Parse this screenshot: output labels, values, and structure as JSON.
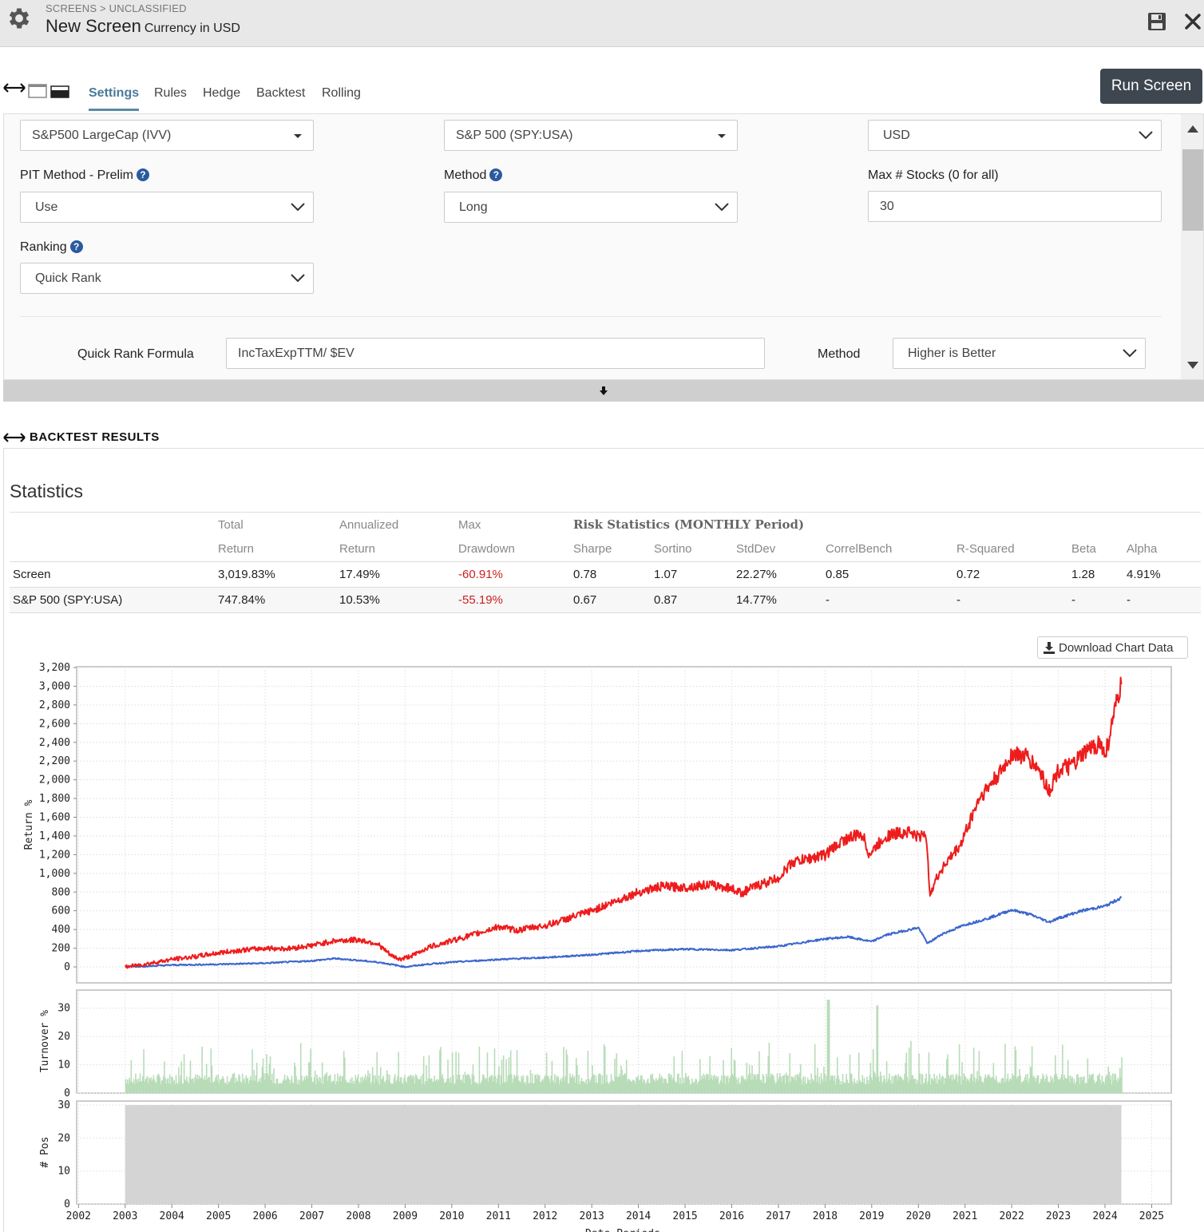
{
  "header": {
    "breadcrumb": "SCREENS > UNCLASSIFIED",
    "title": "New Screen",
    "currency": "Currency in USD"
  },
  "tabs": [
    "Settings",
    "Rules",
    "Hedge",
    "Backtest",
    "Rolling"
  ],
  "run_button": "Run Screen",
  "settings": {
    "universe": "S&P500 LargeCap (IVV)",
    "benchmark": "S&P 500 (SPY:USA)",
    "currency": "USD",
    "pit_label": "PIT Method - Prelim",
    "pit_value": "Use",
    "method_label": "Method",
    "method_value": "Long",
    "max_stocks_label": "Max # Stocks (0 for all)",
    "max_stocks_value": "30",
    "ranking_label": "Ranking",
    "ranking_value": "Quick Rank",
    "formula_label": "Quick Rank Formula",
    "formula_value": "IncTaxExpTTM/ $EV",
    "formula_method_label": "Method",
    "formula_method_value": "Higher is Better"
  },
  "backtest": {
    "title": "BACKTEST RESULTS",
    "stats_title": "Statistics",
    "header_row1": [
      "",
      "Total",
      "Annualized",
      "Max",
      "Risk Statistics (MONTHLY Period)"
    ],
    "header_row2": [
      "",
      "Return",
      "Return",
      "Drawdown",
      "Sharpe",
      "Sortino",
      "StdDev",
      "CorrelBench",
      "R-Squared",
      "Beta",
      "Alpha"
    ],
    "rows": [
      [
        "Screen",
        "3,019.83%",
        "17.49%",
        "-60.91%",
        "0.78",
        "1.07",
        "22.27%",
        "0.85",
        "0.72",
        "1.28",
        "4.91%"
      ],
      [
        "S&P 500 (SPY:USA)",
        "747.84%",
        "10.53%",
        "-55.19%",
        "0.67",
        "0.87",
        "14.77%",
        "-",
        "-",
        "-",
        "-"
      ]
    ],
    "download_label": "Download Chart Data"
  },
  "colors": {
    "screen": "#ee1c1c",
    "benchmark": "#3a66cc",
    "turnover": "#b8dcb8",
    "positions": "#d4d4d4"
  },
  "chart_data": [
    {
      "type": "line",
      "ylabel": "Return %",
      "ylim": [
        0,
        3200
      ],
      "yticks": [
        "0",
        "200",
        "400",
        "600",
        "800",
        "1,000",
        "1,200",
        "1,400",
        "1,600",
        "1,800",
        "2,000",
        "2,200",
        "2,400",
        "2,600",
        "2,800",
        "3,000",
        "3,200"
      ],
      "series": [
        {
          "x": [
            2003.0,
            2003.3,
            2003.6,
            2004.0,
            2004.5,
            2005.0,
            2005.5,
            2006.0,
            2006.5,
            2007.0,
            2007.5,
            2008.0,
            2008.4,
            2008.7,
            2008.9,
            2009.2,
            2009.5,
            2010.0,
            2010.5,
            2011.0,
            2011.4,
            2011.7,
            2012.0,
            2012.5,
            2013.0,
            2013.5,
            2014.0,
            2014.5,
            2015.0,
            2015.5,
            2016.0,
            2016.2,
            2016.5,
            2017.0,
            2017.3,
            2017.6,
            2018.0,
            2018.4,
            2018.8,
            2018.95,
            2019.3,
            2019.8,
            2020.0,
            2020.15,
            2020.25,
            2020.5,
            2020.9,
            2021.3,
            2021.8,
            2022.0,
            2022.3,
            2022.6,
            2022.8,
            2023.0,
            2023.3,
            2023.6,
            2023.9,
            2024.0,
            2024.2,
            2024.35
          ],
          "y": [
            0,
            20,
            45,
            80,
            110,
            150,
            180,
            200,
            195,
            230,
            280,
            290,
            250,
            120,
            80,
            130,
            210,
            280,
            350,
            430,
            390,
            420,
            440,
            520,
            600,
            700,
            800,
            860,
            850,
            880,
            840,
            790,
            860,
            950,
            1120,
            1150,
            1200,
            1360,
            1420,
            1200,
            1400,
            1450,
            1380,
            1450,
            800,
            1050,
            1300,
            1800,
            2100,
            2280,
            2250,
            2100,
            1880,
            2100,
            2150,
            2300,
            2400,
            2250,
            2700,
            3020
          ]
        },
        {
          "x": [
            2003.0,
            2003.5,
            2004.0,
            2005.0,
            2006.0,
            2007.0,
            2007.5,
            2008.0,
            2008.5,
            2009.0,
            2009.5,
            2010.0,
            2011.0,
            2012.0,
            2013.0,
            2014.0,
            2015.0,
            2016.0,
            2016.5,
            2017.0,
            2018.0,
            2018.5,
            2019.0,
            2019.3,
            2020.0,
            2020.2,
            2020.5,
            2021.0,
            2021.5,
            2022.0,
            2022.4,
            2022.8,
            2023.0,
            2023.5,
            2024.0,
            2024.35
          ],
          "y": [
            0,
            8,
            20,
            28,
            40,
            65,
            90,
            70,
            45,
            0,
            30,
            50,
            80,
            100,
            130,
            170,
            190,
            180,
            200,
            220,
            300,
            320,
            270,
            340,
            420,
            250,
            350,
            450,
            520,
            610,
            560,
            480,
            520,
            600,
            650,
            740
          ]
        }
      ]
    },
    {
      "type": "bar",
      "ylabel": "Turnover %",
      "ylim": [
        0,
        35
      ],
      "yticks": [
        "0",
        "10",
        "20",
        "30"
      ]
    },
    {
      "type": "area",
      "ylabel": "# Pos",
      "ylim": [
        0,
        30
      ],
      "yticks": [
        "0",
        "10",
        "20",
        "30"
      ],
      "values": [
        30
      ]
    },
    {
      "xlabel": "Date Periods",
      "xticks": [
        "2002",
        "2003",
        "2004",
        "2005",
        "2006",
        "2007",
        "2008",
        "2009",
        "2010",
        "2011",
        "2012",
        "2013",
        "2014",
        "2015",
        "2016",
        "2017",
        "2018",
        "2019",
        "2020",
        "2021",
        "2022",
        "2023",
        "2024",
        "2025"
      ]
    }
  ]
}
